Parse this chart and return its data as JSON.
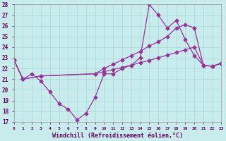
{
  "xlabel": "Windchill (Refroidissement éolien,°C)",
  "background_color": "#c8ecec",
  "grid_color": "#a8d8d8",
  "line_color": "#993399",
  "xlim": [
    0,
    23
  ],
  "ylim": [
    17,
    28
  ],
  "xticks": [
    0,
    1,
    2,
    3,
    4,
    5,
    6,
    7,
    8,
    9,
    10,
    11,
    12,
    13,
    14,
    15,
    16,
    17,
    18,
    19,
    20,
    21,
    22,
    23
  ],
  "yticks": [
    17,
    18,
    19,
    20,
    21,
    22,
    23,
    24,
    25,
    26,
    27,
    28
  ],
  "line1_x": [
    0,
    1,
    2,
    3,
    4,
    5,
    6,
    7,
    8,
    9,
    10,
    11,
    12,
    13,
    14,
    15,
    16,
    17,
    18,
    19,
    20,
    21,
    22,
    23
  ],
  "line1_y": [
    22.8,
    21.0,
    21.5,
    20.8,
    19.8,
    18.7,
    18.2,
    17.2,
    17.8,
    19.3,
    21.5,
    21.5,
    22.0,
    22.3,
    23.0,
    28.0,
    27.0,
    25.8,
    26.5,
    24.7,
    23.2,
    22.3,
    22.2,
    22.5
  ],
  "line2_x": [
    0,
    1,
    3,
    9,
    10,
    11,
    12,
    13,
    14,
    15,
    16,
    17,
    18,
    19,
    20,
    21,
    22,
    23
  ],
  "line2_y": [
    22.8,
    21.0,
    21.3,
    21.5,
    21.7,
    21.9,
    22.1,
    22.3,
    22.55,
    22.75,
    23.0,
    23.25,
    23.5,
    23.75,
    24.0,
    22.3,
    22.2,
    22.5
  ],
  "line3_x": [
    0,
    1,
    3,
    9,
    10,
    11,
    12,
    13,
    14,
    15,
    16,
    17,
    18,
    19,
    20,
    21,
    22,
    23
  ],
  "line3_y": [
    22.8,
    21.0,
    21.3,
    21.5,
    22.0,
    22.4,
    22.8,
    23.2,
    23.6,
    24.1,
    24.5,
    25.0,
    25.8,
    26.1,
    25.8,
    22.3,
    22.2,
    22.5
  ],
  "markersize": 2.5,
  "linewidth": 0.9,
  "font_color": "#660066"
}
